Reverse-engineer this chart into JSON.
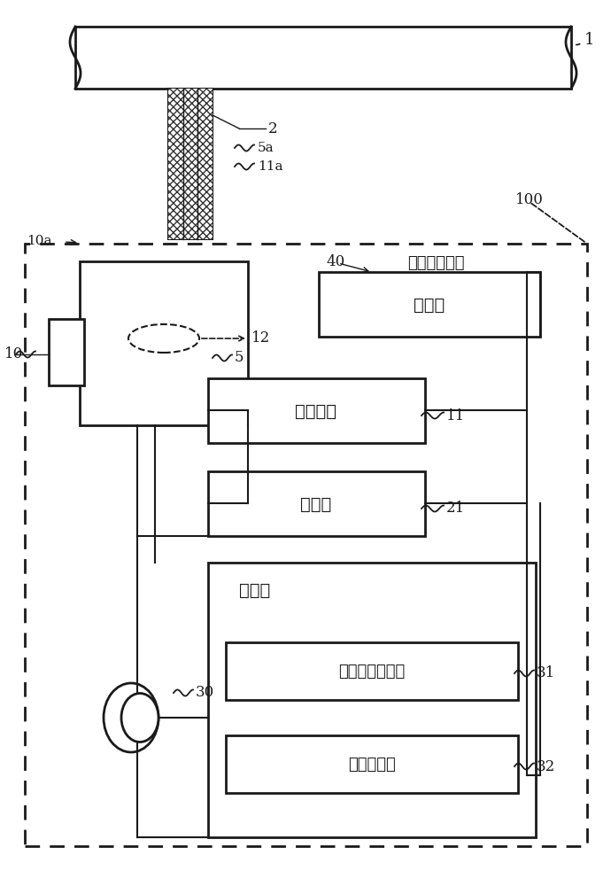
{
  "bg_color": "#ffffff",
  "line_color": "#1a1a1a",
  "label_1": "1",
  "label_2": "2",
  "label_5a": "5a",
  "label_11a": "11a",
  "label_10a": "10a",
  "label_10": "10",
  "label_12": "12",
  "label_5": "5",
  "label_40": "40",
  "label_100": "100",
  "label_11": "11",
  "label_21": "21",
  "label_30": "30",
  "label_31": "31",
  "label_32": "32",
  "text_device": "激光加工装置",
  "text_control": "控制部",
  "text_laser_src": "激光光源",
  "text_water_src": "水流源",
  "text_calc": "运算部",
  "text_time": "时间幅度取得部",
  "text_dist": "距离计算部"
}
